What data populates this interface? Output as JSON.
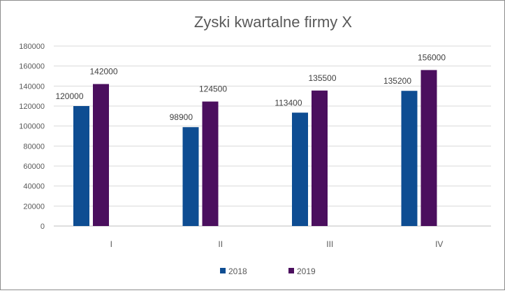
{
  "chart_data": {
    "type": "bar",
    "title": "Zyski kwartalne firmy X",
    "categories": [
      "I",
      "II",
      "III",
      "IV"
    ],
    "series": [
      {
        "name": "2018",
        "values": [
          120000,
          98900,
          113400,
          135200
        ],
        "color": "#0e4d92"
      },
      {
        "name": "2019",
        "values": [
          142000,
          124500,
          135500,
          156000
        ],
        "color": "#4b0f5e"
      }
    ],
    "yticks": [
      "0",
      "20000",
      "40000",
      "60000",
      "80000",
      "100000",
      "120000",
      "140000",
      "160000",
      "180000"
    ],
    "ylim": [
      0,
      180000
    ],
    "grid": true,
    "legend": "bottom",
    "xlabel": "",
    "ylabel": ""
  }
}
